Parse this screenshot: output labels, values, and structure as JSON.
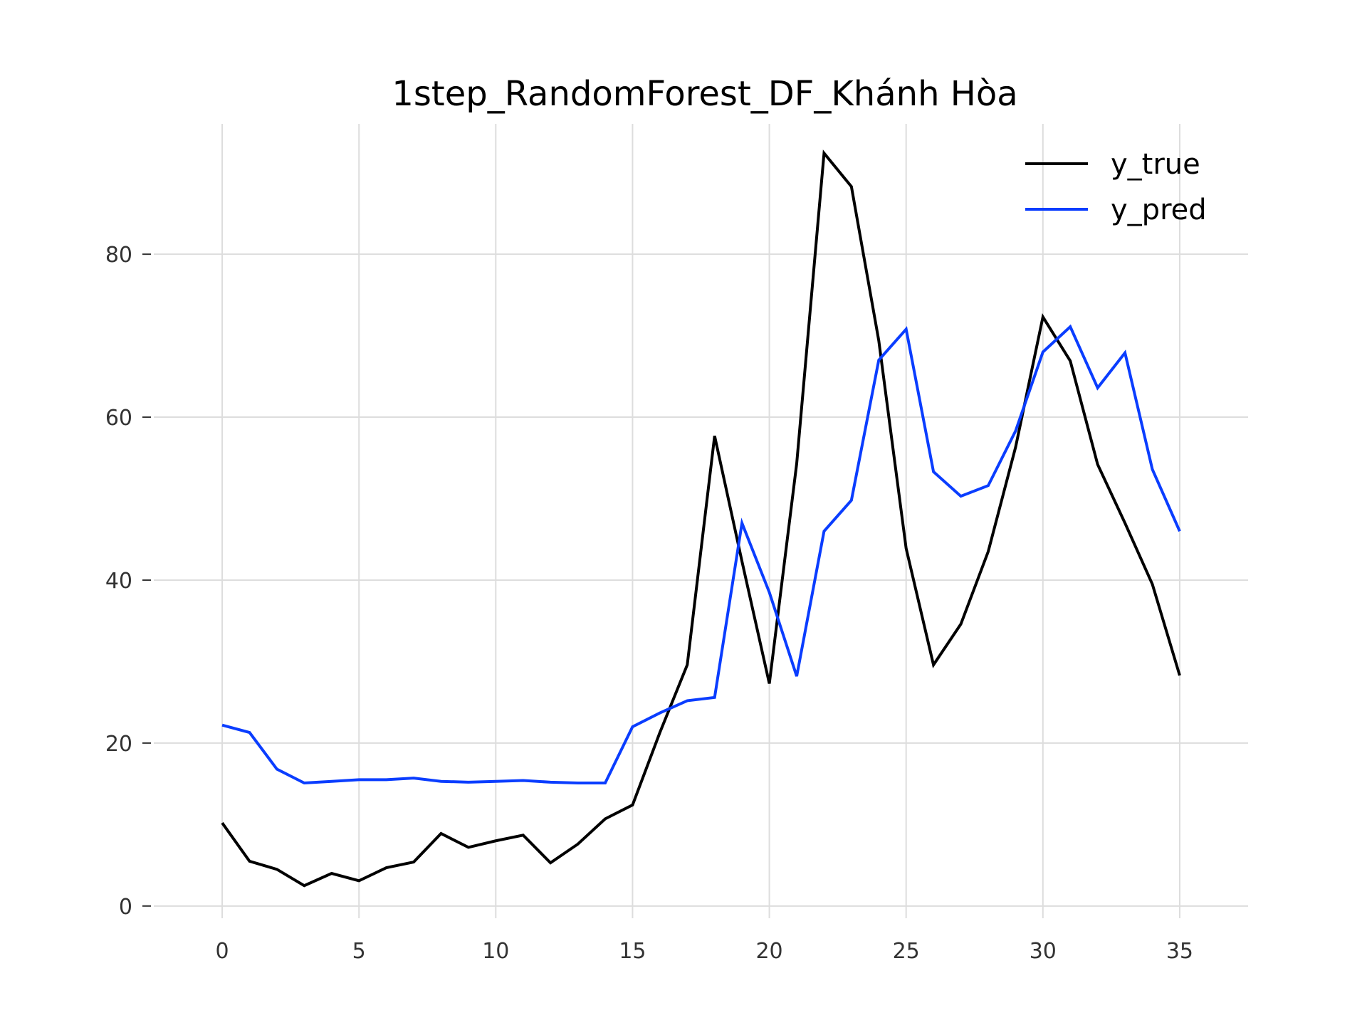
{
  "chart_data": {
    "type": "line",
    "title": "1step_RandomForest_DF_Khánh Hòa",
    "xlabel": "",
    "ylabel": "",
    "x": [
      0,
      1,
      2,
      3,
      4,
      5,
      6,
      7,
      8,
      9,
      10,
      11,
      12,
      13,
      14,
      15,
      16,
      17,
      18,
      19,
      20,
      21,
      22,
      23,
      24,
      25,
      26,
      27,
      28,
      29,
      30,
      31,
      32,
      33,
      34,
      35
    ],
    "xlim": [
      -2.5,
      37.5
    ],
    "ylim": [
      -1.5,
      96
    ],
    "xticks": [
      0,
      5,
      10,
      15,
      20,
      25,
      30,
      35
    ],
    "yticks": [
      0,
      20,
      40,
      60,
      80
    ],
    "grid": true,
    "legend_position": "top-right",
    "series": [
      {
        "name": "y_true",
        "color": "#000000",
        "values": [
          10.2,
          5.5,
          4.5,
          2.5,
          4.0,
          3.1,
          4.7,
          5.4,
          8.9,
          7.2,
          8.0,
          8.7,
          5.3,
          7.6,
          10.7,
          12.4,
          21.3,
          29.6,
          57.7,
          42.3,
          27.3,
          54.3,
          92.4,
          88.3,
          69.4,
          43.9,
          29.6,
          34.6,
          43.5,
          56.3,
          72.3,
          66.9,
          54.2,
          47.0,
          39.5,
          28.3
        ]
      },
      {
        "name": "y_pred",
        "color": "#0a3dff",
        "values": [
          22.2,
          21.3,
          16.8,
          15.1,
          15.3,
          15.5,
          15.5,
          15.7,
          15.3,
          15.2,
          15.3,
          15.4,
          15.2,
          15.1,
          15.1,
          22.0,
          23.7,
          25.2,
          25.6,
          47.0,
          38.5,
          28.2,
          46.0,
          49.8,
          67.0,
          70.8,
          53.3,
          50.3,
          51.6,
          58.3,
          68.0,
          71.1,
          63.6,
          67.9,
          53.6,
          46.0
        ]
      }
    ]
  }
}
